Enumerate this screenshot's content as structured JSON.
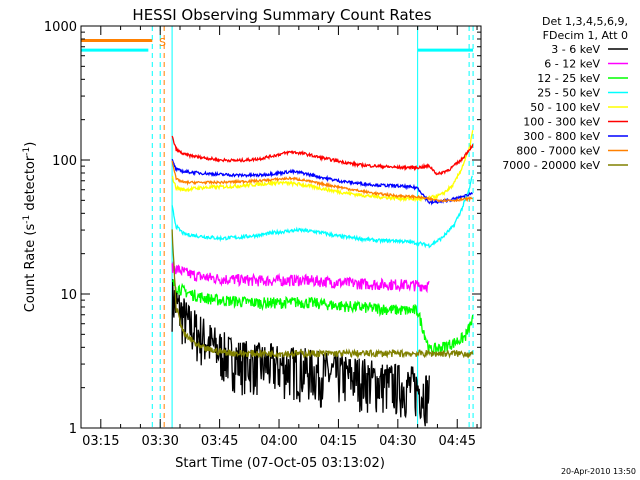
{
  "chart_data": {
    "type": "line",
    "title": "HESSI Observing Summary Count Rates",
    "xlabel": "Start Time (07-Oct-05 03:13:02)",
    "ylabel_main": "Count Rate (s",
    "ylabel_sup1": "-1",
    "ylabel_mid": " detector",
    "ylabel_sup2": "-1",
    "ylabel_end": ")",
    "y_scale": "log",
    "ylim": [
      1,
      1000
    ],
    "xlim": [
      "03:10",
      "04:51"
    ],
    "x_ticks": [
      "03:15",
      "03:30",
      "03:45",
      "04:00",
      "04:15",
      "04:30",
      "04:45"
    ],
    "y_ticks": [
      "1",
      "10",
      "100",
      "1000"
    ],
    "legend": {
      "header": [
        "Det 1,3,4,5,6,9,",
        "FDecim 1, Att 0"
      ],
      "entries": [
        {
          "label": "3 - 6 keV",
          "color": "#000000"
        },
        {
          "label": "6 - 12 keV",
          "color": "#ff00ff"
        },
        {
          "label": "12 - 25 keV",
          "color": "#00ff00"
        },
        {
          "label": "25 - 50 keV",
          "color": "#00ffff"
        },
        {
          "label": "50 - 100 keV",
          "color": "#ffff00"
        },
        {
          "label": "100 - 300 keV",
          "color": "#ff0000"
        },
        {
          "label": "300 - 800 keV",
          "color": "#0000ff"
        },
        {
          "label": "800 - 7000 keV",
          "color": "#ff8000"
        },
        {
          "label": "7000 - 20000 keV",
          "color": "#808000"
        }
      ]
    },
    "annotations": {
      "saa_label": "S",
      "timestamp": "20-Apr-2010 13:50"
    },
    "flag_bars": [
      {
        "color": "#ff8000",
        "x_start": "03:10",
        "x_end": "03:28",
        "y": 780
      },
      {
        "color": "#00ffff",
        "x_start": "03:10",
        "x_end": "03:27",
        "y": 660
      },
      {
        "color": "#00ffff",
        "x_start": "04:35",
        "x_end": "04:49",
        "y": 660
      }
    ],
    "vlines_solid": [
      {
        "x": "03:33",
        "color": "#00ffff"
      },
      {
        "x": "04:35",
        "color": "#00ffff"
      }
    ],
    "vlines_dashed": [
      {
        "x": "03:28",
        "color": "#00ffff"
      },
      {
        "x": "03:30",
        "color": "#00ffff"
      },
      {
        "x": "03:31",
        "color": "#ff8000"
      },
      {
        "x": "04:48",
        "color": "#00ffff"
      },
      {
        "x": "04:49",
        "color": "#00ffff"
      }
    ],
    "series": [
      {
        "name": "3 - 6 keV",
        "color": "#000000",
        "x": [
          "03:33",
          "03:35",
          "03:37",
          "03:40",
          "03:43",
          "03:46",
          "03:50",
          "03:55",
          "04:00",
          "04:05",
          "04:10",
          "04:15",
          "04:20",
          "04:25",
          "04:30",
          "04:35",
          "04:38"
        ],
        "y": [
          9.5,
          7.5,
          6,
          5,
          4.2,
          3.6,
          3.2,
          3.0,
          2.9,
          2.8,
          2.6,
          2.5,
          2.4,
          2.2,
          2.1,
          2.0,
          1.8
        ]
      },
      {
        "name": "6 - 12 keV",
        "color": "#ff00ff",
        "x": [
          "03:33",
          "03:36",
          "03:40",
          "03:45",
          "03:50",
          "03:55",
          "04:00",
          "04:05",
          "04:10",
          "04:15",
          "04:20",
          "04:25",
          "04:30",
          "04:35",
          "04:38"
        ],
        "y": [
          16,
          14.5,
          13.5,
          13,
          12.8,
          12.6,
          12.6,
          12.7,
          12.5,
          12.2,
          12.0,
          11.8,
          11.8,
          11.6,
          11.6
        ]
      },
      {
        "name": "12 - 25 keV",
        "color": "#00ff00",
        "x": [
          "03:33",
          "03:36",
          "03:40",
          "03:45",
          "03:50",
          "03:55",
          "04:00",
          "04:05",
          "04:10",
          "04:15",
          "04:20",
          "04:25",
          "04:30",
          "04:35",
          "04:38",
          "04:41",
          "04:44",
          "04:47",
          "04:49"
        ],
        "y": [
          12,
          10.5,
          9.5,
          9.0,
          8.8,
          8.6,
          8.6,
          8.7,
          8.5,
          8.2,
          8.0,
          7.8,
          7.6,
          7.5,
          3.8,
          4.0,
          4.3,
          4.8,
          6.5
        ]
      },
      {
        "name": "25 - 50 keV",
        "color": "#00ffff",
        "x": [
          "03:33",
          "03:34",
          "03:36",
          "03:40",
          "03:45",
          "03:50",
          "03:55",
          "04:00",
          "04:05",
          "04:10",
          "04:15",
          "04:20",
          "04:25",
          "04:30",
          "04:35",
          "04:38",
          "04:41",
          "04:44",
          "04:46",
          "04:48",
          "04:49"
        ],
        "y": [
          45,
          32,
          28,
          27,
          26,
          26.5,
          27.5,
          29,
          30,
          29,
          27,
          26,
          25,
          25,
          24,
          23,
          26,
          32,
          42,
          60,
          80
        ]
      },
      {
        "name": "50 - 100 keV",
        "color": "#ffff00",
        "x": [
          "03:33",
          "03:34",
          "03:36",
          "03:40",
          "03:45",
          "03:50",
          "03:55",
          "04:00",
          "04:05",
          "04:10",
          "04:15",
          "04:20",
          "04:25",
          "04:30",
          "04:35",
          "04:38",
          "04:41",
          "04:44",
          "04:46",
          "04:48",
          "04:49"
        ],
        "y": [
          75,
          62,
          60,
          62,
          63,
          64,
          66,
          68,
          66,
          62,
          58,
          55,
          53,
          52,
          51,
          52,
          55,
          65,
          85,
          120,
          170
        ]
      },
      {
        "name": "100 - 300 keV",
        "color": "#ff0000",
        "x": [
          "03:33",
          "03:34",
          "03:36",
          "03:40",
          "03:45",
          "03:50",
          "03:55",
          "04:00",
          "04:03",
          "04:06",
          "04:10",
          "04:15",
          "04:20",
          "04:25",
          "04:30",
          "04:35",
          "04:38",
          "04:40",
          "04:43",
          "04:46",
          "04:49"
        ],
        "y": [
          150,
          120,
          110,
          105,
          100,
          99,
          102,
          110,
          115,
          112,
          105,
          98,
          92,
          90,
          88,
          88,
          90,
          78,
          85,
          100,
          130
        ]
      },
      {
        "name": "300 - 800 keV",
        "color": "#0000ff",
        "x": [
          "03:33",
          "03:34",
          "03:36",
          "03:40",
          "03:45",
          "03:50",
          "03:55",
          "04:00",
          "04:03",
          "04:06",
          "04:10",
          "04:15",
          "04:20",
          "04:25",
          "04:30",
          "04:35",
          "04:38",
          "04:41",
          "04:44",
          "04:47",
          "04:49"
        ],
        "y": [
          100,
          85,
          82,
          80,
          78,
          77,
          77,
          80,
          82,
          80,
          75,
          70,
          67,
          65,
          64,
          62,
          48,
          49,
          51,
          54,
          57
        ]
      },
      {
        "name": "800 - 7000 keV",
        "color": "#ff8000",
        "x": [
          "03:33",
          "03:34",
          "03:36",
          "03:40",
          "03:45",
          "03:50",
          "03:55",
          "04:00",
          "04:03",
          "04:06",
          "04:10",
          "04:15",
          "04:20",
          "04:25",
          "04:30",
          "04:35",
          "04:38",
          "04:41",
          "04:44",
          "04:47",
          "04:49"
        ],
        "y": [
          100,
          72,
          68,
          68,
          68,
          69,
          70,
          72,
          73,
          71,
          67,
          63,
          59,
          56,
          54,
          53,
          51,
          50,
          50,
          51,
          52
        ]
      },
      {
        "name": "7000 - 20000 keV",
        "color": "#808000",
        "x": [
          "03:33",
          "03:34",
          "03:36",
          "03:38",
          "03:40",
          "03:43",
          "03:46",
          "03:50",
          "03:55",
          "04:00",
          "04:05",
          "04:10",
          "04:15",
          "04:20",
          "04:25",
          "04:30",
          "04:35",
          "04:40",
          "04:45",
          "04:49"
        ],
        "y": [
          30,
          8,
          5,
          4.5,
          4.0,
          3.8,
          3.7,
          3.6,
          3.6,
          3.6,
          3.6,
          3.6,
          3.6,
          3.6,
          3.6,
          3.6,
          3.6,
          3.6,
          3.6,
          3.6
        ]
      }
    ]
  }
}
